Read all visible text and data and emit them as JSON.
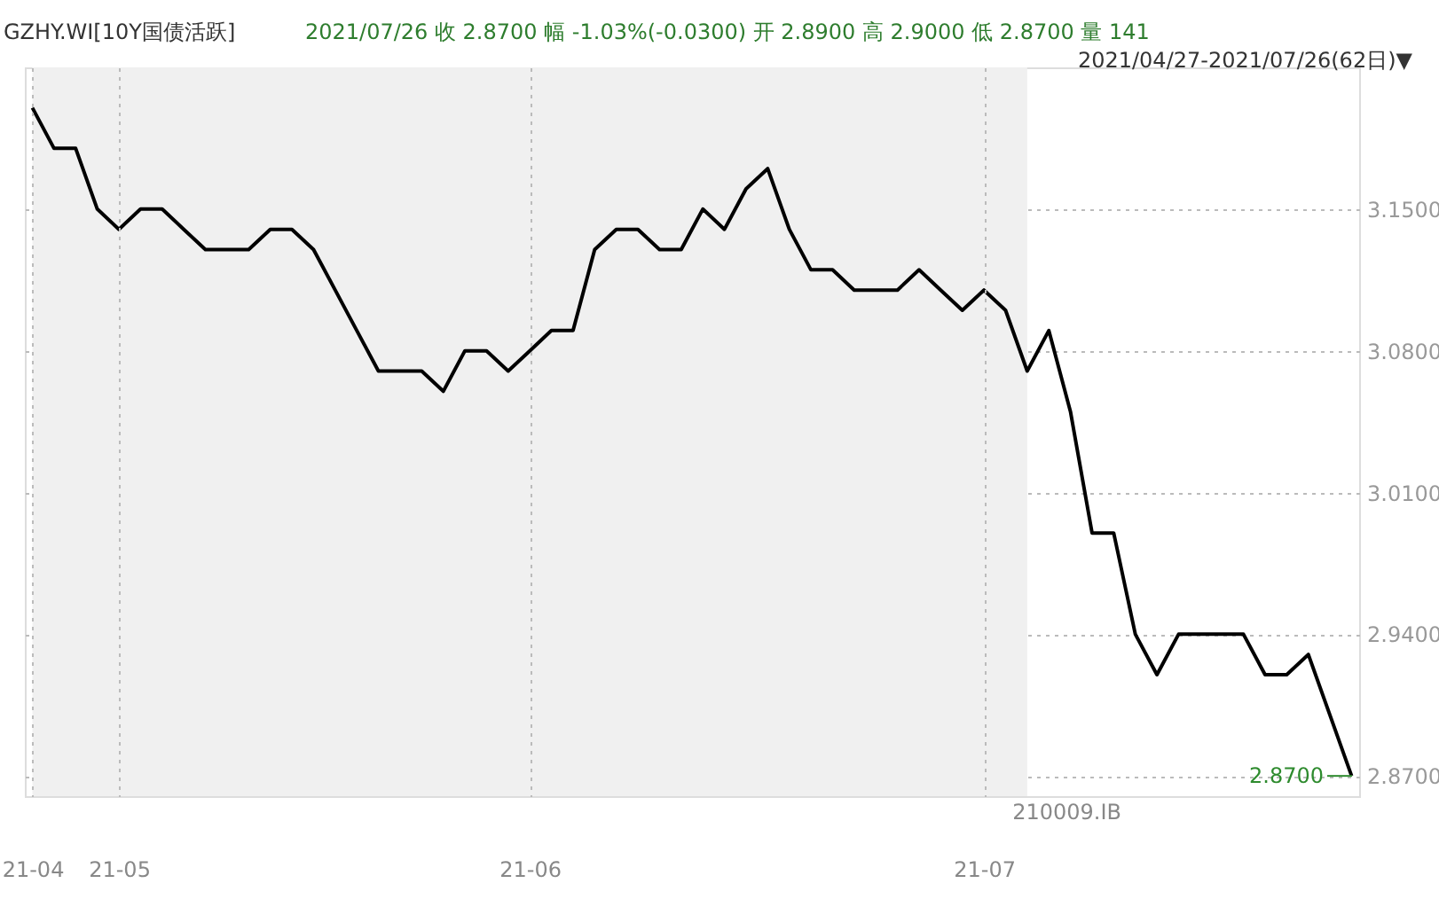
{
  "chart_data": {
    "type": "line",
    "title": "GZHY.WI[10Y国债活跃]",
    "subtitle": "2021/07/26    收 2.8700    幅 -1.03%(-0.0300)    开 2.8900    高 2.9000    低 2.8700    量 141",
    "categories": [
      "21-04",
      null,
      null,
      null,
      "21-05",
      null,
      null,
      null,
      null,
      null,
      null,
      null,
      null,
      null,
      null,
      null,
      null,
      null,
      null,
      null,
      null,
      null,
      null,
      "21-06",
      null,
      null,
      null,
      null,
      null,
      null,
      null,
      null,
      null,
      null,
      null,
      null,
      null,
      null,
      null,
      null,
      null,
      null,
      null,
      null,
      "21-07",
      null,
      null,
      null,
      null,
      null,
      null,
      null,
      null,
      null,
      null,
      null,
      null,
      null,
      null,
      null,
      null,
      null
    ],
    "series": [
      {
        "color": "#000000",
        "values": [
          3.2,
          3.18,
          3.18,
          3.15,
          3.14,
          3.15,
          3.15,
          3.14,
          3.13,
          3.13,
          3.13,
          3.14,
          3.14,
          3.13,
          3.11,
          3.09,
          3.07,
          3.07,
          3.07,
          3.06,
          3.08,
          3.08,
          3.07,
          3.08,
          3.09,
          3.09,
          3.13,
          3.14,
          3.14,
          3.13,
          3.13,
          3.15,
          3.14,
          3.16,
          3.17,
          3.14,
          3.12,
          3.12,
          3.11,
          3.11,
          3.11,
          3.12,
          3.11,
          3.1,
          3.11,
          3.1,
          3.07,
          3.09,
          3.05,
          2.99,
          2.99,
          2.94,
          2.92,
          2.94,
          2.94,
          2.94,
          2.94,
          2.92,
          2.92,
          2.93,
          2.9,
          2.87
        ]
      }
    ],
    "ylim": [
      2.86,
      3.22
    ],
    "yticks": [
      {
        "value": 2.87,
        "label": "2.8700"
      },
      {
        "value": 2.94,
        "label": "2.9400"
      },
      {
        "value": 3.01,
        "label": "3.0100"
      },
      {
        "value": 3.08,
        "label": "3.0800"
      },
      {
        "value": 3.15,
        "label": "3.1500"
      }
    ],
    "annotations": [
      "2021/04/27-2021/07/26(62日)▼",
      "210009.IB",
      "2.8700"
    ],
    "grid": true,
    "marker": "none",
    "line_style": "solid"
  }
}
